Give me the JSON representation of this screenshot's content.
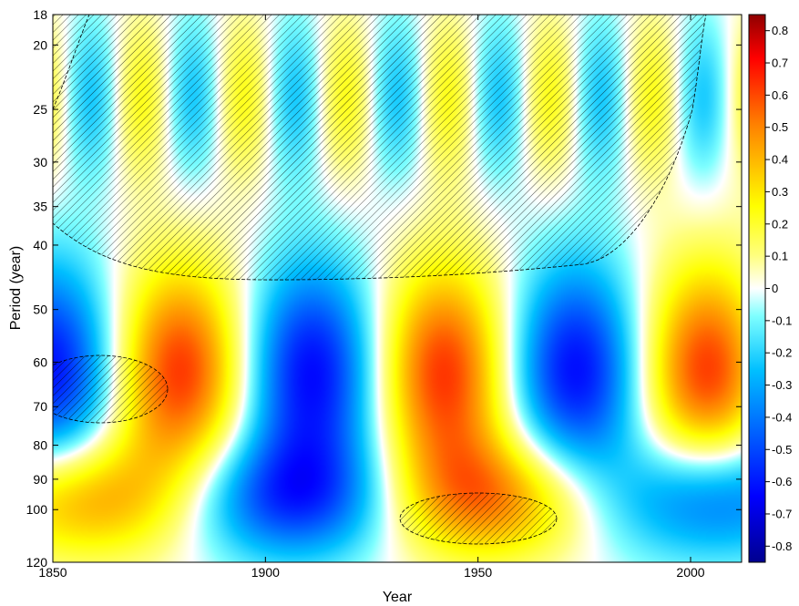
{
  "chart_data": {
    "type": "heatmap",
    "title": "",
    "xlabel": "Year",
    "ylabel": "Period  (year)",
    "xlim": [
      1850,
      2012
    ],
    "ylim": [
      18,
      120
    ],
    "y_scale": "log",
    "x_ticks": [
      1850,
      1900,
      1950,
      2000
    ],
    "y_ticks": [
      18,
      20,
      25,
      30,
      35,
      40,
      50,
      60,
      70,
      80,
      90,
      100,
      120
    ],
    "colorbar": {
      "range": [
        -0.85,
        0.85
      ],
      "ticks": [
        0.8,
        0.7,
        0.6,
        0.5,
        0.4,
        0.3,
        0.2,
        0.1,
        0,
        -0.1,
        -0.2,
        -0.3,
        -0.4,
        -0.5,
        -0.6,
        -0.7,
        -0.8
      ],
      "colormap": "jet"
    },
    "features": [
      {
        "kind": "negative",
        "year": 1910,
        "period": 62,
        "value": -0.6
      },
      {
        "kind": "positive",
        "year": 1942,
        "period": 62,
        "value": 0.6
      },
      {
        "kind": "negative",
        "year": 1972,
        "period": 60,
        "value": -0.6
      },
      {
        "kind": "positive",
        "year": 2000,
        "period": 55,
        "value": 0.4
      },
      {
        "kind": "positive",
        "year": 1881,
        "period": 56,
        "value": 0.35
      },
      {
        "kind": "positive",
        "year": 1852,
        "period": 95,
        "value": 0.55
      },
      {
        "kind": "negative",
        "year": 1903,
        "period": 90,
        "value": -0.55
      }
    ],
    "hatched_regions": [
      {
        "name": "cone-of-influence-top",
        "description": "hatched"
      },
      {
        "name": "left-ellipse",
        "year": 1863,
        "period": 65
      },
      {
        "name": "bottom-ellipse",
        "year": 1948,
        "period": 104
      }
    ]
  }
}
